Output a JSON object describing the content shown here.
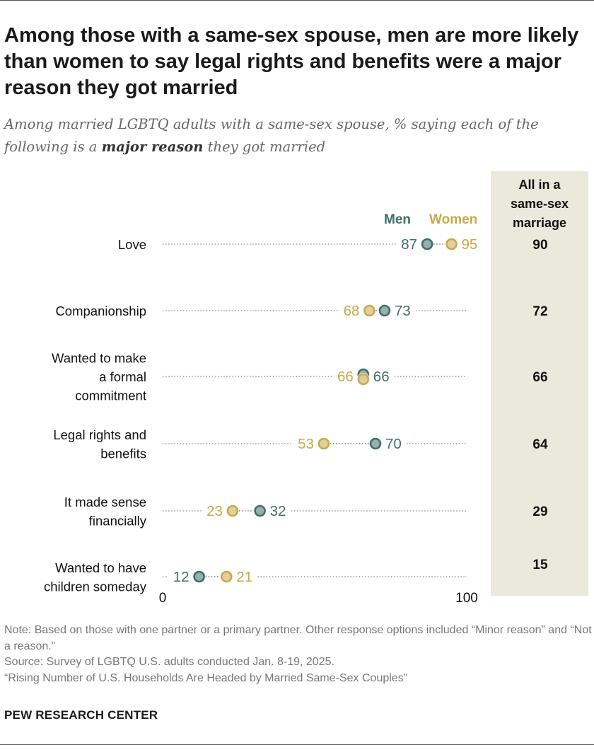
{
  "title": "Among those with a same-sex spouse, men are more likely than women to say legal rights and benefits were a major reason they got married",
  "subtitle": {
    "before": "Among married LGBTQ adults with a same-sex spouse, % saying each of the following is a ",
    "emphasis": "major reason",
    "after": " they got married"
  },
  "colors": {
    "men": "#3f6f66",
    "women": "#c9a94c",
    "total_column_bg": "#ebe8dc",
    "dots": "#999999"
  },
  "chart_data": {
    "type": "dot",
    "legend": {
      "men": "Men",
      "women": "Women"
    },
    "total_header": [
      "All in a",
      "same-sex",
      "marriage"
    ],
    "xlim": [
      0,
      100
    ],
    "x_ticks": [
      "0",
      "100"
    ],
    "categories": [
      {
        "label": [
          "Love"
        ],
        "men": 87,
        "women": 95,
        "total": 90
      },
      {
        "label": [
          "Companionship"
        ],
        "men": 73,
        "women": 68,
        "total": 72
      },
      {
        "label": [
          "Wanted to make",
          "a formal",
          "commitment"
        ],
        "men": 66,
        "women": 66,
        "total": 66
      },
      {
        "label": [
          "Legal rights and",
          "benefits"
        ],
        "men": 70,
        "women": 53,
        "total": 64
      },
      {
        "label": [
          "It made sense",
          "financially"
        ],
        "men": 32,
        "women": 23,
        "total": 29
      },
      {
        "label": [
          "Wanted to have",
          "children someday"
        ],
        "men": 12,
        "women": 21,
        "total": 15
      }
    ]
  },
  "footer": {
    "note": "Note: Based on those with one partner or a primary partner. Other response options included “Minor reason” and “Not a reason.”",
    "source": "Source: Survey of LGBTQ U.S. adults conducted Jan. 8-19, 2025.",
    "report": "“Rising Number of U.S. Households Are Headed by Married Same-Sex Couples”",
    "brand": "PEW RESEARCH CENTER"
  }
}
